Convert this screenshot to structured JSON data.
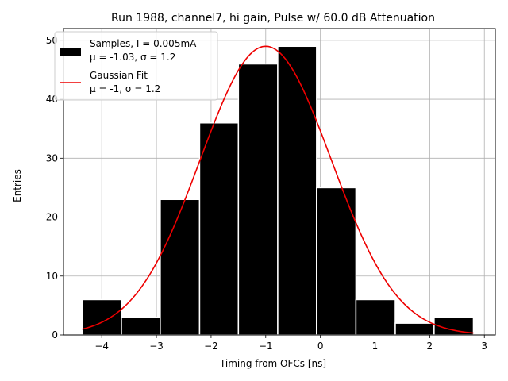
{
  "chart_data": {
    "type": "bar",
    "title": "Run 1988, channel7, hi gain, Pulse w/ 60.0 dB Attenuation",
    "xlabel": "Timing from OFCs [ns]",
    "ylabel": "Entries",
    "xlim": [
      -4.7,
      3.2
    ],
    "ylim": [
      0,
      52
    ],
    "xticks": [
      -4,
      -3,
      -2,
      -1,
      0,
      1,
      2,
      3
    ],
    "yticks": [
      0,
      10,
      20,
      30,
      40,
      50
    ],
    "xtick_labels": [
      "−4",
      "−3",
      "−2",
      "−1",
      "0",
      "1",
      "2",
      "3"
    ],
    "ytick_labels": [
      "0",
      "10",
      "20",
      "30",
      "40",
      "50"
    ],
    "grid": true,
    "legend_position": "upper-left",
    "histogram": {
      "bin_edges": [
        -4.36,
        -3.64,
        -2.93,
        -2.21,
        -1.5,
        -0.78,
        -0.07,
        0.65,
        1.37,
        2.08,
        2.8
      ],
      "counts": [
        6,
        3,
        23,
        36,
        46,
        49,
        25,
        6,
        2,
        3
      ],
      "color": "#000000",
      "edge_color": "#ffffff"
    },
    "fit": {
      "amplitude": 49,
      "mean": -1.0,
      "sigma": 1.2,
      "x_range": [
        -4.36,
        2.8
      ],
      "color": "#ee0000"
    },
    "legend": [
      {
        "kind": "patch",
        "line1": "Samples, I = 0.005mA",
        "line2": "μ = -1.03, σ = 1.2"
      },
      {
        "kind": "line",
        "line1": "Gaussian Fit",
        "line2": "μ = -1, σ = 1.2"
      }
    ]
  }
}
